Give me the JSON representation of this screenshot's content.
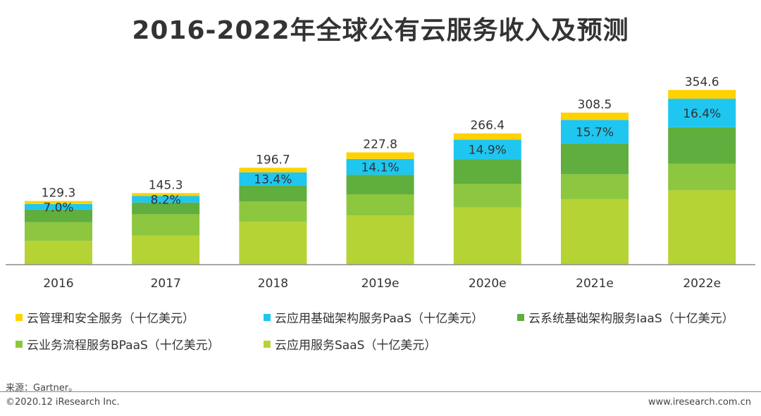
{
  "page": {
    "title": "2016-2022年全球公有云服务收入及预测",
    "source": "来源：Gartner。",
    "copyright": "©2020.12 iResearch Inc.",
    "website": "www.iresearch.com.cn"
  },
  "chart_data": {
    "type": "bar",
    "stacked": true,
    "title": "2016-2022年全球公有云服务收入及预测",
    "categories": [
      "2016",
      "2017",
      "2018",
      "2019e",
      "2020e",
      "2021e",
      "2022e"
    ],
    "totals": [
      "129.3",
      "145.3",
      "196.7",
      "227.8",
      "266.4",
      "308.5",
      "354.6"
    ],
    "iaas_share_labels": [
      "7.0%",
      "8.2%",
      "13.4%",
      "14.1%",
      "14.9%",
      "15.7%",
      "16.4%"
    ],
    "series": [
      {
        "name": "云应用服务SaaS（十亿美元）",
        "color": "#b5d334",
        "values": [
          48.2,
          58.8,
          86.9,
          99.5,
          116.0,
          133.0,
          151.1
        ]
      },
      {
        "name": "云业务流程服务BPaaS（十亿美元）",
        "color": "#8dc63f",
        "values": [
          38.0,
          43.5,
          41.7,
          43.3,
          48.2,
          50.7,
          53.8
        ]
      },
      {
        "name": "云系统基础架构服务IaaS（十亿美元）",
        "color": "#5fae3e",
        "values": [
          25.4,
          23.8,
          32.4,
          39.5,
          50.0,
          61.9,
          74.0
        ]
      },
      {
        "name": "云应用基础架构服务PaaS（十亿美元）",
        "color": "#1ec6f0",
        "values": [
          11.4,
          13.2,
          26.4,
          32.2,
          39.7,
          48.3,
          58.0
        ]
      },
      {
        "name": "云管理和安全服务（十亿美元）",
        "color": "#ffd200",
        "values": [
          6.3,
          6.0,
          9.3,
          13.3,
          12.5,
          14.6,
          17.7
        ]
      }
    ],
    "legend": {
      "placement": "bottom",
      "items": [
        {
          "label": "云管理和安全服务（十亿美元）",
          "color": "#ffd200"
        },
        {
          "label": "云应用基础架构服务PaaS（十亿美元）",
          "color": "#1ec6f0"
        },
        {
          "label": "云系统基础架构服务IaaS（十亿美元）",
          "color": "#5fae3e"
        },
        {
          "label": "云业务流程服务BPaaS（十亿美元）",
          "color": "#8dc63f"
        },
        {
          "label": "云应用服务SaaS（十亿美元）",
          "color": "#b5d334"
        }
      ]
    },
    "ylim": [
      0,
      400
    ],
    "grid": false
  }
}
